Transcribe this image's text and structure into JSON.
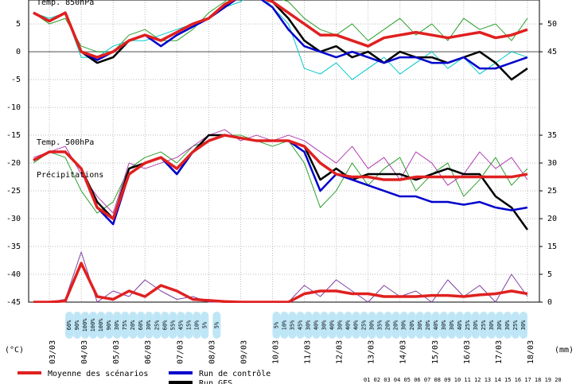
{
  "chart_data": {
    "type": "line",
    "panel_labels": [
      "Temp. 850hPa",
      "Temp. 500hPa",
      "Précipitations"
    ],
    "ylabel": "(°C)",
    "y2label": "(mm)",
    "x": [
      2.5,
      3,
      3.5,
      4,
      4.5,
      5,
      5.5,
      6,
      6.5,
      7,
      7.5,
      8,
      8.5,
      9,
      9.5,
      10,
      10.5,
      11,
      11.5,
      12,
      12.5,
      13,
      13.5,
      14,
      14.5,
      15,
      15.5,
      16,
      16.5,
      17,
      17.5,
      18
    ],
    "xlim": [
      2.35,
      18.375
    ],
    "xticks": [
      {
        "value": 3,
        "label": "03/03"
      },
      {
        "value": 4,
        "label": "04/03"
      },
      {
        "value": 5,
        "label": "05/03"
      },
      {
        "value": 6,
        "label": "06/03"
      },
      {
        "value": 7,
        "label": "07/03"
      },
      {
        "value": 8,
        "label": "08/03"
      },
      {
        "value": 9,
        "label": "09/03"
      },
      {
        "value": 10,
        "label": "10/03"
      },
      {
        "value": 11,
        "label": "11/03"
      },
      {
        "value": 12,
        "label": "12/03"
      },
      {
        "value": 13,
        "label": "13/03"
      },
      {
        "value": 14,
        "label": "14/03"
      },
      {
        "value": 15,
        "label": "15/03"
      },
      {
        "value": 16,
        "label": "16/03"
      },
      {
        "value": 17,
        "label": "17/03"
      },
      {
        "value": 18,
        "label": "18/03"
      }
    ],
    "ylim": [
      -45,
      9.3
    ],
    "yticks": [
      5,
      0,
      -5,
      -10,
      -15,
      -20,
      -25,
      -30,
      -35,
      -40,
      -45
    ],
    "y2lim": [
      0,
      54.3
    ],
    "y2ticks": [
      50,
      45,
      5,
      0
    ],
    "y3lim": [
      5,
      59.3
    ],
    "y3ticks": [
      35,
      30,
      25,
      20,
      15
    ],
    "grid": true,
    "series": [
      {
        "color": "#2ca02c",
        "values": [
          7,
          5,
          6,
          1,
          0,
          0,
          3,
          4,
          2,
          2,
          4,
          7,
          9,
          11,
          12,
          10,
          9,
          6,
          4,
          3,
          5,
          2,
          4,
          6,
          3,
          5,
          2,
          6,
          4,
          5,
          2,
          6
        ]
      },
      {
        "color": "#00c8c8",
        "values": [
          7,
          6,
          7,
          -1,
          -1,
          1,
          2,
          2,
          3,
          4,
          5,
          6,
          8,
          9,
          11,
          8,
          5,
          -3,
          -4,
          -2,
          -5,
          -3,
          -1,
          -4,
          -2,
          0,
          -3,
          -1,
          -4,
          -2,
          0,
          -1
        ]
      },
      {
        "color": "#2ca02c",
        "values": [
          -20,
          -18,
          -19,
          -25,
          -29,
          -27,
          -21,
          -19,
          -18,
          -20,
          -17,
          -16,
          -15,
          -15,
          -16,
          -17,
          -16,
          -20,
          -28,
          -25,
          -20,
          -24,
          -21,
          -19,
          -25,
          -22,
          -20,
          -26,
          -23,
          -19,
          -24,
          -21
        ]
      },
      {
        "color": "#b040b0",
        "values": [
          -19,
          -18,
          -17,
          -22,
          -26,
          -29,
          -20,
          -21,
          -20,
          -19,
          -17,
          -15,
          -14,
          -16,
          -15,
          -16,
          -15,
          -16,
          -18,
          -20,
          -17,
          -21,
          -19,
          -23,
          -18,
          -20,
          -24,
          -22,
          -18,
          -21,
          -19,
          -23
        ]
      },
      {
        "color": "#8040a0",
        "axis": "y2",
        "values": [
          0,
          0,
          0.5,
          9,
          0,
          2,
          1,
          4,
          2,
          0.5,
          1,
          0,
          0,
          0,
          0,
          0,
          0,
          3,
          1,
          4,
          2,
          0,
          3,
          1,
          2,
          0,
          4,
          1,
          3,
          0,
          5,
          1
        ]
      },
      {
        "name": "Run GFS",
        "color": "#000000",
        "values": [
          7,
          5.5,
          7,
          0,
          -2,
          -1,
          2,
          3,
          2,
          3.5,
          5,
          6,
          8,
          10,
          10,
          9,
          6,
          2,
          0,
          1,
          -1,
          0,
          -2,
          0,
          -1,
          -1,
          -2,
          -1,
          0,
          -2,
          -5,
          -3
        ]
      },
      {
        "color": "#000000",
        "values": [
          -19.5,
          -18,
          -18,
          -21,
          -27,
          -30,
          -21,
          -20,
          -19,
          -22,
          -18,
          -15,
          -15,
          -15.5,
          -16,
          -16,
          -16,
          -17,
          -23,
          -21,
          -23,
          -22,
          -22,
          -22,
          -23,
          -22,
          -21,
          -22,
          -22,
          -26,
          -28,
          -32
        ]
      },
      {
        "name": "Run de contrôle",
        "color": "#0000cc",
        "values": [
          7,
          5.5,
          7,
          0,
          -1.5,
          0,
          2,
          3,
          1,
          3,
          4.5,
          6,
          8,
          10,
          10,
          8,
          4,
          1,
          0,
          -1,
          0,
          -1,
          -2,
          -1,
          -1,
          -2,
          -2,
          -1,
          -3,
          -3,
          -2,
          -1
        ]
      },
      {
        "color": "#0000cc",
        "values": [
          -19.5,
          -18,
          -18,
          -21,
          -28,
          -31,
          -22,
          -20,
          -19,
          -22,
          -18,
          -16,
          -15,
          -15.5,
          -16,
          -16,
          -16,
          -18,
          -25,
          -22,
          -23,
          -24,
          -25,
          -26,
          -26,
          -27,
          -27,
          -27.5,
          -27,
          -28,
          -28.5,
          -28
        ]
      },
      {
        "name": "Moyenne des scénarios",
        "color": "#e02020",
        "values": [
          7,
          5.5,
          7,
          0,
          -1,
          0,
          2,
          3,
          2,
          3.5,
          5,
          6,
          8.5,
          10,
          10,
          9,
          7,
          5,
          3,
          3,
          2,
          1,
          2.5,
          3,
          3.5,
          3,
          2.5,
          3,
          3.5,
          2.5,
          3,
          4
        ]
      },
      {
        "color": "#e02020",
        "values": [
          -19.5,
          -18,
          -18,
          -21,
          -28,
          -30,
          -22,
          -20,
          -19,
          -21,
          -18,
          -16,
          -15,
          -15.5,
          -16,
          -16,
          -16,
          -17,
          -20,
          -22,
          -22.5,
          -22.5,
          -23,
          -23,
          -22.5,
          -22.5,
          -22.5,
          -22.5,
          -22.5,
          -22.5,
          -22.5,
          -22
        ]
      },
      {
        "color": "#e02020",
        "axis": "y2",
        "values": [
          0,
          0,
          0.2,
          7,
          1,
          0.5,
          2,
          1,
          3,
          2,
          0.5,
          0.3,
          0.1,
          0,
          0,
          0,
          0,
          1.5,
          2,
          2,
          1.5,
          1.5,
          1,
          1,
          1,
          1.2,
          1.2,
          1,
          1.3,
          1.5,
          2,
          1.5
        ]
      }
    ],
    "rain_probability": {
      "x": [
        3.625,
        3.875,
        4.125,
        4.375,
        4.625,
        4.875,
        5.125,
        5.375,
        5.625,
        5.875,
        6.125,
        6.375,
        6.625,
        6.875,
        7.125,
        7.375,
        7.625,
        7.875,
        8.25,
        10.125,
        10.375,
        10.625,
        10.875,
        11.125,
        11.375,
        11.625,
        11.875,
        12.125,
        12.375,
        12.625,
        12.875,
        13.125,
        13.375,
        13.625,
        13.875,
        14.125,
        14.375,
        14.625,
        14.875,
        15.125,
        15.375,
        15.625,
        15.875,
        16.125,
        16.375,
        16.625,
        16.875,
        17.125,
        17.375,
        17.625,
        17.875
      ],
      "values": [
        60,
        90,
        100,
        100,
        100,
        90,
        30,
        75,
        20,
        60,
        30,
        25,
        60,
        55,
        45,
        15,
        10,
        5,
        5,
        5,
        10,
        35,
        45,
        30,
        40,
        30,
        40,
        30,
        40,
        40,
        25,
        30,
        35,
        20,
        20,
        30,
        20,
        30,
        20,
        40,
        30,
        30,
        40,
        25,
        30,
        25,
        30,
        30,
        30,
        25,
        30
      ],
      "value_labels": [
        "60%",
        "90%",
        "100%",
        "100%",
        "100%",
        "90%",
        "30%",
        "75%",
        "20%",
        "60%",
        "30%",
        "25%",
        "60%",
        "55%",
        "45%",
        "15%",
        "10%",
        "5%",
        "5%",
        "5%",
        "10%",
        "35%",
        "45%",
        "30%",
        "40%",
        "30%",
        "40%",
        "30%",
        "40%",
        "40%",
        "25%",
        "30%",
        "35%",
        "20%",
        "20%",
        "30%",
        "20%",
        "30%",
        "20%",
        "40%",
        "30%",
        "30%",
        "40%",
        "25%",
        "30%",
        "25%",
        "30%",
        "30%",
        "30%",
        "25%",
        "30%"
      ]
    },
    "member_numbers": "01 02 03 04 05 06 07 08 09 10 11 12 13 14 15 16 17 18 19 20"
  }
}
